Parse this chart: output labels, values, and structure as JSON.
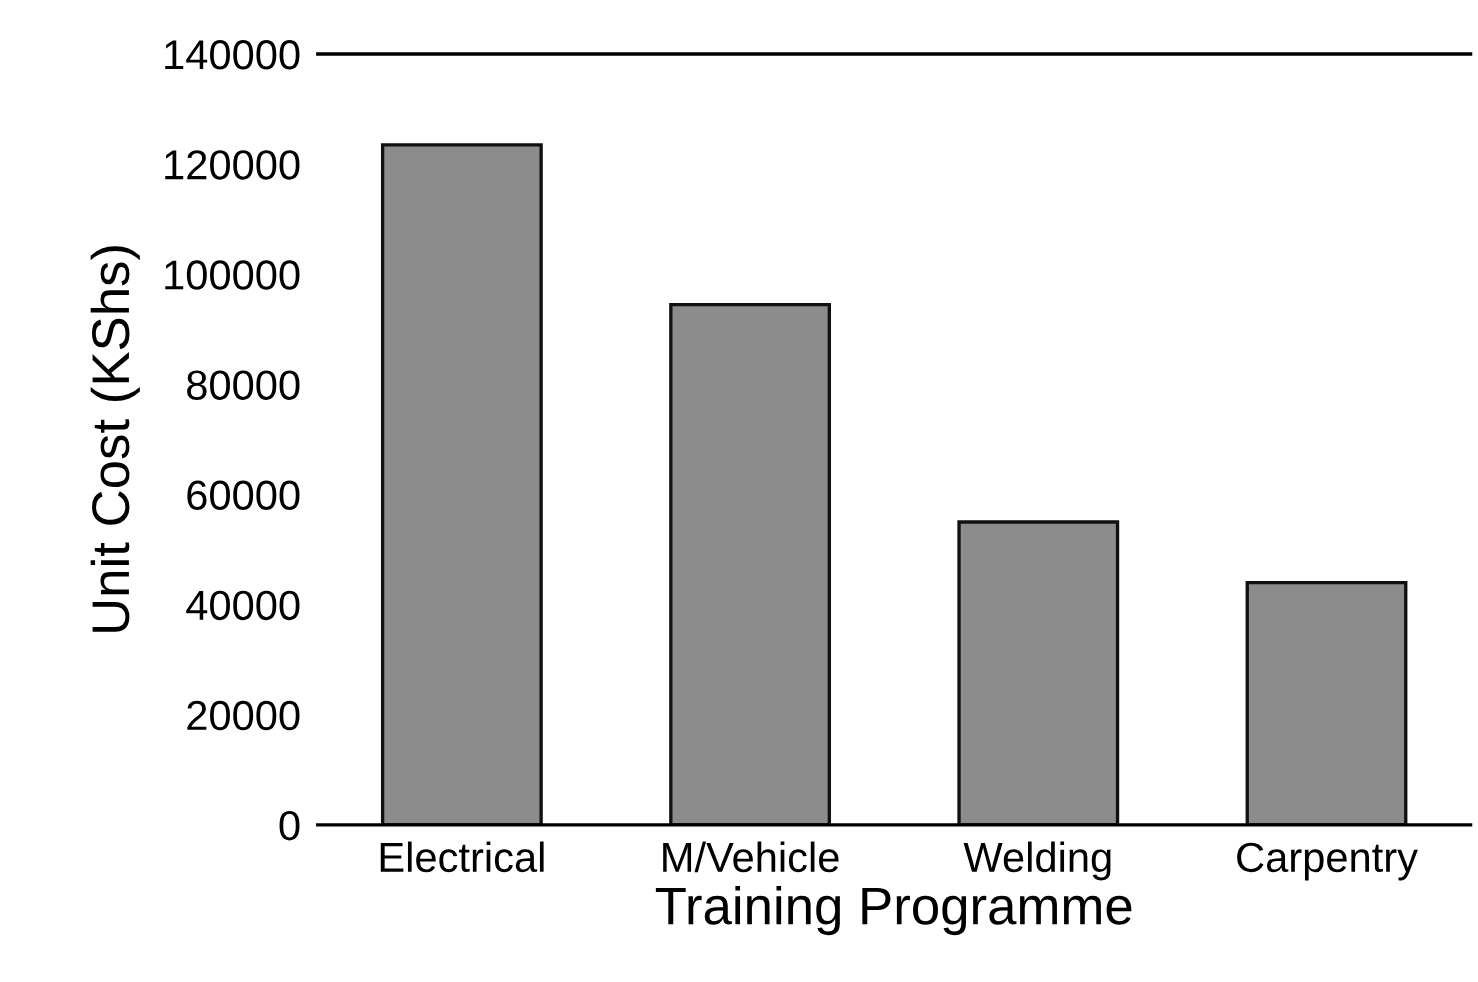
{
  "chart_data": {
    "type": "bar",
    "xlabel": "Training Programme",
    "ylabel": "Unit Cost (KShs)",
    "categories": [
      "Electrical",
      "M/Vehicle",
      "Welding",
      "Carpentry"
    ],
    "values": [
      123500,
      94500,
      55000,
      44000
    ],
    "color": "#8c8c8c",
    "ylim": [
      0,
      140000
    ],
    "yticks": [
      0,
      20000,
      40000,
      60000,
      80000,
      100000,
      120000,
      140000
    ],
    "grid": false,
    "legend": false
  }
}
